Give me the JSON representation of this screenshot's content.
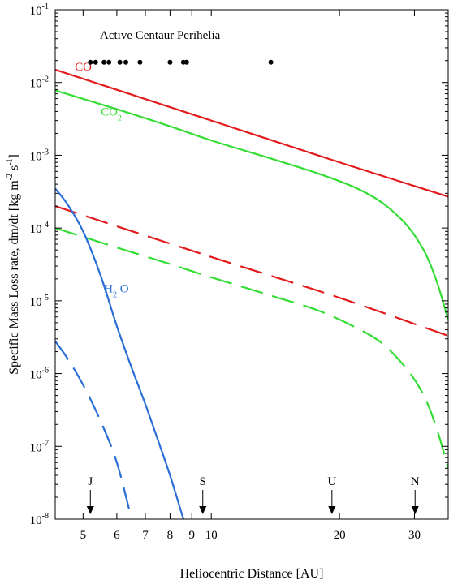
{
  "chart_data": {
    "type": "line",
    "title": "",
    "xlabel": "Heliocentric Distance [AU]",
    "ylabel": {
      "prefix": "Specific Mass Loss rate, dm/dt [kg m",
      "exp1": "-2",
      "mid": " s",
      "exp2": "-1",
      "suffix": "]"
    },
    "x_scale": "log",
    "y_scale": "log",
    "xlim": [
      4.3,
      36
    ],
    "ylim": [
      1e-08,
      0.1
    ],
    "x_ticks": [
      5,
      6,
      7,
      8,
      9,
      10,
      20,
      30
    ],
    "x_tick_labels": [
      "5",
      "6",
      "7",
      "8",
      "9",
      "10",
      "20",
      "30"
    ],
    "y_ticks": [
      {
        "value": 1e-08,
        "base": "10",
        "exp": "-8"
      },
      {
        "value": 1e-07,
        "base": "10",
        "exp": "-7"
      },
      {
        "value": 1e-06,
        "base": "10",
        "exp": "-6"
      },
      {
        "value": 1e-05,
        "base": "10",
        "exp": "-5"
      },
      {
        "value": 0.0001,
        "base": "10",
        "exp": "-4"
      },
      {
        "value": 0.001,
        "base": "10",
        "exp": "-3"
      },
      {
        "value": 0.01,
        "base": "10",
        "exp": "-2"
      },
      {
        "value": 0.1,
        "base": "10",
        "exp": "-1"
      }
    ],
    "series": [
      {
        "label": "CO",
        "style": "solid",
        "color": "#e31a1c",
        "points": [
          [
            4.3,
            0.015
          ],
          [
            10,
            0.003
          ],
          [
            20,
            0.0008
          ],
          [
            36,
            0.00027
          ]
        ]
      },
      {
        "label": "CO",
        "style": "dashed",
        "color": "#e31a1c",
        "points": [
          [
            4.3,
            0.0002
          ],
          [
            10,
            4e-05
          ],
          [
            20,
            1.1e-05
          ],
          [
            36,
            3.3e-06
          ]
        ]
      },
      {
        "label": "CO2",
        "style": "solid",
        "color": "#33dd33",
        "points": [
          [
            4.3,
            0.0078
          ],
          [
            6,
            0.0043
          ],
          [
            8,
            0.0025
          ],
          [
            10,
            0.0016
          ],
          [
            14,
            0.00088
          ],
          [
            18,
            0.00055
          ],
          [
            22,
            0.00035
          ],
          [
            25,
            0.00023
          ],
          [
            28,
            0.00013
          ],
          [
            30,
            8e-05
          ],
          [
            32,
            4.2e-05
          ],
          [
            34,
            1.7e-05
          ],
          [
            36,
            5.5e-06
          ]
        ]
      },
      {
        "label": "CO2",
        "style": "dashed",
        "color": "#33dd33",
        "points": [
          [
            4.3,
            0.0001
          ],
          [
            6,
            5.4e-05
          ],
          [
            8,
            3.2e-05
          ],
          [
            10,
            2.1e-05
          ],
          [
            14,
            1.15e-05
          ],
          [
            18,
            7.2e-06
          ],
          [
            22,
            4.2e-06
          ],
          [
            25,
            2.7e-06
          ],
          [
            28,
            1.4e-06
          ],
          [
            30,
            8.3e-07
          ],
          [
            32,
            4.2e-07
          ],
          [
            34,
            1.6e-07
          ],
          [
            36,
            5e-08
          ]
        ]
      },
      {
        "label": "H2O",
        "style": "solid",
        "color": "#2a6ed6",
        "points": [
          [
            4.3,
            0.00035
          ],
          [
            4.6,
            0.00021
          ],
          [
            5,
            9e-05
          ],
          [
            5.5,
            2.2e-05
          ],
          [
            6,
            4.5e-06
          ],
          [
            6.5,
            1.2e-06
          ],
          [
            7,
            3.8e-07
          ],
          [
            7.5,
            1.2e-07
          ],
          [
            8,
            4e-08
          ],
          [
            8.6,
            1e-08
          ]
        ]
      },
      {
        "label": "H2O",
        "style": "dashed",
        "color": "#2a6ed6",
        "points": [
          [
            4.3,
            2.8e-06
          ],
          [
            4.6,
            1.6e-06
          ],
          [
            5,
            7e-07
          ],
          [
            5.5,
            2.2e-07
          ],
          [
            6,
            6e-08
          ],
          [
            6.5,
            1e-08
          ]
        ]
      }
    ],
    "series_labels": [
      {
        "base": "CO",
        "sub": "",
        "color": "#e31a1c",
        "x": 4.78,
        "y": 0.0145
      },
      {
        "base": "CO",
        "sub": "2",
        "color": "#33dd33",
        "x": 5.5,
        "y": 0.0035
      },
      {
        "base": "H",
        "sub": "2",
        "tail": " O",
        "color": "#2a6ed6",
        "x": 5.6,
        "y": 1.3e-05
      }
    ],
    "perihelia_label": "Active Centaur Perihelia",
    "perihelia_y": 0.019,
    "perihelia": [
      5.2,
      5.35,
      5.6,
      5.75,
      6.1,
      6.3,
      6.8,
      8.0,
      8.6,
      8.75,
      13.8
    ],
    "planets": [
      {
        "label": "J",
        "x": 5.2
      },
      {
        "label": "S",
        "x": 9.55
      },
      {
        "label": "U",
        "x": 19.2
      },
      {
        "label": "N",
        "x": 30.1
      }
    ],
    "grid": false,
    "legend": "none"
  }
}
